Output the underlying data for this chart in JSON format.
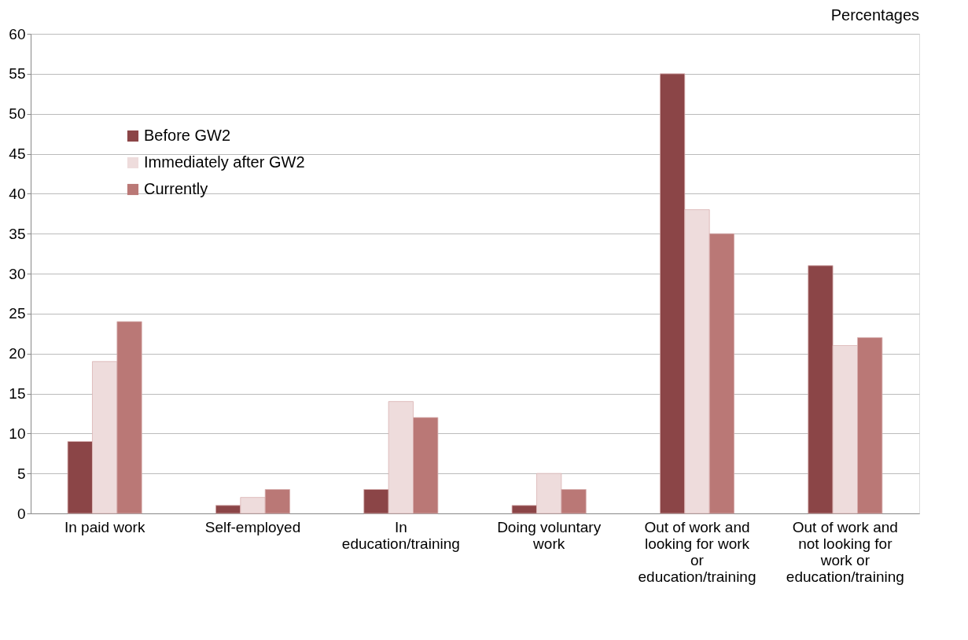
{
  "chart_data": {
    "type": "bar",
    "ylabel": "Percentages",
    "categories": [
      "In paid work",
      "Self-employed",
      "In education/training",
      "Doing voluntary work",
      "Out of work and looking for work or education/training",
      "Out of work and not looking for work or education/training"
    ],
    "series": [
      {
        "name": "Before GW2",
        "color": "#8b4547",
        "values": [
          9,
          1,
          3,
          1,
          55,
          31
        ]
      },
      {
        "name": "Immediately after GW2",
        "color": "#eedcdc",
        "values": [
          19,
          2,
          14,
          5,
          38,
          21
        ]
      },
      {
        "name": "Currently",
        "color": "#ba7876",
        "values": [
          24,
          3,
          12,
          3,
          35,
          22
        ]
      }
    ],
    "ylim": [
      0,
      60
    ],
    "yticks": [
      0,
      5,
      10,
      15,
      20,
      25,
      30,
      35,
      40,
      45,
      50,
      55,
      60
    ],
    "grid": "y",
    "legend": "top left"
  }
}
